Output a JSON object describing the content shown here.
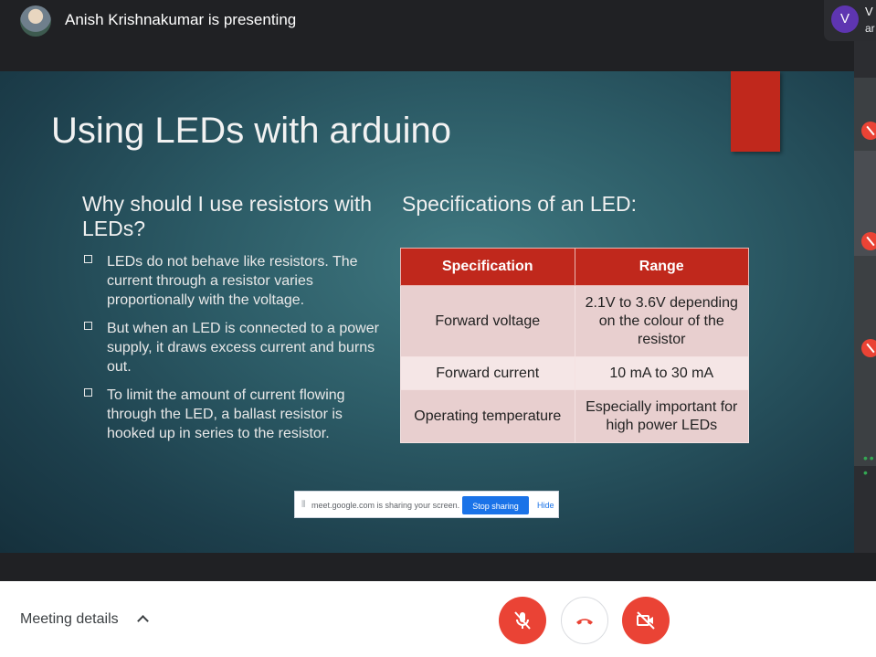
{
  "header": {
    "presenter_text": "Anish Krishnakumar is presenting",
    "self_initial": "V",
    "self_name_partial_top": "V",
    "self_name_partial_bottom": "ar"
  },
  "slide": {
    "title": "Using LEDs with arduino",
    "left_heading": "Why should I use resistors with LEDs?",
    "bullets": [
      "LEDs do not behave like resistors. The current through a resistor varies proportionally with the voltage.",
      "But when an LED is connected to a power supply, it draws excess current and burns out.",
      "To limit the amount of current flowing through the LED, a ballast resistor is hooked up in series to the resistor."
    ],
    "right_heading": "Specifications of an LED:",
    "table": {
      "headers": [
        "Specification",
        "Range"
      ],
      "rows": [
        [
          "Forward voltage",
          "2.1V to 3.6V depending on the colour of the resistor"
        ],
        [
          "Forward current",
          "10 mA to 30 mA"
        ],
        [
          "Operating temperature",
          "Especially important for high power LEDs"
        ]
      ]
    }
  },
  "share_bar": {
    "message": "meet.google.com is sharing your screen.",
    "stop_label": "Stop sharing",
    "hide_label": "Hide"
  },
  "footer": {
    "meeting_details_label": "Meeting details"
  },
  "colors": {
    "slide_accent": "#c0281c",
    "control_red": "#ea4335",
    "share_blue": "#1a73e8"
  }
}
